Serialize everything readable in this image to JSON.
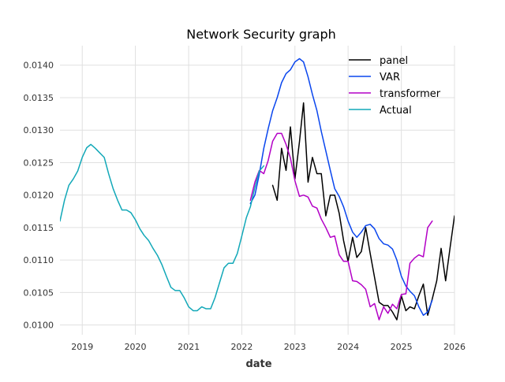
{
  "chart_data": {
    "type": "line",
    "title": "Network Security graph",
    "xlabel": "date",
    "ylabel": "",
    "x_axis_type": "date",
    "xlim": [
      "2018-08-01",
      "2026-01-01"
    ],
    "ylim": [
      0.00985,
      0.0143
    ],
    "x_ticks": [
      {
        "value": "2019-01-01",
        "label": "2019"
      },
      {
        "value": "2020-01-01",
        "label": "2020"
      },
      {
        "value": "2021-01-01",
        "label": "2021"
      },
      {
        "value": "2022-01-01",
        "label": "2022"
      },
      {
        "value": "2023-01-01",
        "label": "2023"
      },
      {
        "value": "2024-01-01",
        "label": "2024"
      },
      {
        "value": "2025-01-01",
        "label": "2025"
      },
      {
        "value": "2026-01-01",
        "label": "2026"
      }
    ],
    "y_ticks": [
      {
        "value": 0.01,
        "label": "0.0100"
      },
      {
        "value": 0.0105,
        "label": "0.0105"
      },
      {
        "value": 0.011,
        "label": "0.0110"
      },
      {
        "value": 0.0115,
        "label": "0.0115"
      },
      {
        "value": 0.012,
        "label": "0.0120"
      },
      {
        "value": 0.0125,
        "label": "0.0125"
      },
      {
        "value": 0.013,
        "label": "0.0130"
      },
      {
        "value": 0.0135,
        "label": "0.0135"
      },
      {
        "value": 0.014,
        "label": "0.0140"
      }
    ],
    "grid": true,
    "legend_position": "top-right",
    "series": [
      {
        "name": "panel",
        "color": "#000000",
        "points": [
          [
            "2022-08-01",
            0.01215
          ],
          [
            "2022-09-01",
            0.01192
          ],
          [
            "2022-10-01",
            0.01272
          ],
          [
            "2022-11-01",
            0.01238
          ],
          [
            "2022-12-01",
            0.01305
          ],
          [
            "2023-01-01",
            0.01225
          ],
          [
            "2023-02-01",
            0.01282
          ],
          [
            "2023-03-01",
            0.01342
          ],
          [
            "2023-04-01",
            0.0122
          ],
          [
            "2023-05-01",
            0.01258
          ],
          [
            "2023-06-01",
            0.01233
          ],
          [
            "2023-07-01",
            0.01233
          ],
          [
            "2023-08-01",
            0.01168
          ],
          [
            "2023-09-01",
            0.012
          ],
          [
            "2023-10-01",
            0.012
          ],
          [
            "2023-11-01",
            0.01172
          ],
          [
            "2023-12-01",
            0.0113
          ],
          [
            "2024-01-01",
            0.01098
          ],
          [
            "2024-02-01",
            0.01135
          ],
          [
            "2024-03-01",
            0.01104
          ],
          [
            "2024-04-01",
            0.01113
          ],
          [
            "2024-05-01",
            0.0115
          ],
          [
            "2024-06-01",
            0.0111
          ],
          [
            "2024-07-01",
            0.01073
          ],
          [
            "2024-08-01",
            0.01035
          ],
          [
            "2024-09-01",
            0.0103
          ],
          [
            "2024-10-01",
            0.0103
          ],
          [
            "2024-11-01",
            0.0102
          ],
          [
            "2024-12-01",
            0.01008
          ],
          [
            "2025-01-01",
            0.01045
          ],
          [
            "2025-02-01",
            0.01022
          ],
          [
            "2025-03-01",
            0.01028
          ],
          [
            "2025-04-01",
            0.01025
          ],
          [
            "2025-05-01",
            0.01045
          ],
          [
            "2025-06-01",
            0.01063
          ],
          [
            "2025-07-01",
            0.01015
          ],
          [
            "2025-08-01",
            0.0104
          ],
          [
            "2025-09-01",
            0.01068
          ],
          [
            "2025-10-01",
            0.01118
          ],
          [
            "2025-11-01",
            0.01068
          ],
          [
            "2025-12-01",
            0.01118
          ],
          [
            "2026-01-01",
            0.01168
          ]
        ]
      },
      {
        "name": "VAR",
        "color": "#0a46ee",
        "points": [
          [
            "2022-03-01",
            0.01187
          ],
          [
            "2022-04-01",
            0.012
          ],
          [
            "2022-05-01",
            0.01232
          ],
          [
            "2022-06-01",
            0.01272
          ],
          [
            "2022-07-01",
            0.01302
          ],
          [
            "2022-08-01",
            0.0133
          ],
          [
            "2022-09-01",
            0.0135
          ],
          [
            "2022-10-01",
            0.01373
          ],
          [
            "2022-11-01",
            0.01387
          ],
          [
            "2022-12-01",
            0.01393
          ],
          [
            "2023-01-01",
            0.01405
          ],
          [
            "2023-02-01",
            0.0141
          ],
          [
            "2023-03-01",
            0.01405
          ],
          [
            "2023-04-01",
            0.01382
          ],
          [
            "2023-05-01",
            0.01355
          ],
          [
            "2023-06-01",
            0.0133
          ],
          [
            "2023-07-01",
            0.01298
          ],
          [
            "2023-08-01",
            0.01268
          ],
          [
            "2023-09-01",
            0.01238
          ],
          [
            "2023-10-01",
            0.0121
          ],
          [
            "2023-11-01",
            0.01198
          ],
          [
            "2023-12-01",
            0.01182
          ],
          [
            "2024-01-01",
            0.0116
          ],
          [
            "2024-02-01",
            0.01143
          ],
          [
            "2024-03-01",
            0.01135
          ],
          [
            "2024-04-01",
            0.01143
          ],
          [
            "2024-05-01",
            0.01153
          ],
          [
            "2024-06-01",
            0.01155
          ],
          [
            "2024-07-01",
            0.01148
          ],
          [
            "2024-08-01",
            0.01133
          ],
          [
            "2024-09-01",
            0.01125
          ],
          [
            "2024-10-01",
            0.01123
          ],
          [
            "2024-11-01",
            0.01117
          ],
          [
            "2024-12-01",
            0.011
          ],
          [
            "2025-01-01",
            0.01075
          ],
          [
            "2025-02-01",
            0.0106
          ],
          [
            "2025-03-01",
            0.01052
          ],
          [
            "2025-04-01",
            0.01045
          ],
          [
            "2025-05-01",
            0.01028
          ],
          [
            "2025-06-01",
            0.01015
          ],
          [
            "2025-07-01",
            0.0102
          ],
          [
            "2025-08-01",
            0.01038
          ]
        ]
      },
      {
        "name": "transformer",
        "color": "#b300c6",
        "points": [
          [
            "2022-03-01",
            0.01192
          ],
          [
            "2022-04-01",
            0.0122
          ],
          [
            "2022-05-01",
            0.01238
          ],
          [
            "2022-06-01",
            0.01233
          ],
          [
            "2022-07-01",
            0.01253
          ],
          [
            "2022-08-01",
            0.01283
          ],
          [
            "2022-09-01",
            0.01295
          ],
          [
            "2022-10-01",
            0.01295
          ],
          [
            "2022-11-01",
            0.01278
          ],
          [
            "2022-12-01",
            0.01257
          ],
          [
            "2023-01-01",
            0.01222
          ],
          [
            "2023-02-01",
            0.01198
          ],
          [
            "2023-03-01",
            0.012
          ],
          [
            "2023-04-01",
            0.01197
          ],
          [
            "2023-05-01",
            0.01183
          ],
          [
            "2023-06-01",
            0.0118
          ],
          [
            "2023-07-01",
            0.01163
          ],
          [
            "2023-08-01",
            0.0115
          ],
          [
            "2023-09-01",
            0.01135
          ],
          [
            "2023-10-01",
            0.01137
          ],
          [
            "2023-11-01",
            0.01108
          ],
          [
            "2023-12-01",
            0.01098
          ],
          [
            "2024-01-01",
            0.01098
          ],
          [
            "2024-02-01",
            0.01068
          ],
          [
            "2024-03-01",
            0.01067
          ],
          [
            "2024-04-01",
            0.01062
          ],
          [
            "2024-05-01",
            0.01055
          ],
          [
            "2024-06-01",
            0.01028
          ],
          [
            "2024-07-01",
            0.01033
          ],
          [
            "2024-08-01",
            0.01008
          ],
          [
            "2024-09-01",
            0.01028
          ],
          [
            "2024-10-01",
            0.01018
          ],
          [
            "2024-11-01",
            0.01032
          ],
          [
            "2024-12-01",
            0.01025
          ],
          [
            "2025-01-01",
            0.01047
          ],
          [
            "2025-02-01",
            0.01048
          ],
          [
            "2025-03-01",
            0.01095
          ],
          [
            "2025-04-01",
            0.01103
          ],
          [
            "2025-05-01",
            0.01108
          ],
          [
            "2025-06-01",
            0.01105
          ],
          [
            "2025-07-01",
            0.0115
          ],
          [
            "2025-08-01",
            0.0116
          ]
        ]
      },
      {
        "name": "Actual",
        "color": "#12a8b8",
        "points": [
          [
            "2018-08-01",
            0.0116
          ],
          [
            "2018-09-01",
            0.01192
          ],
          [
            "2018-10-01",
            0.01215
          ],
          [
            "2018-11-01",
            0.01225
          ],
          [
            "2018-12-01",
            0.01237
          ],
          [
            "2019-01-01",
            0.01258
          ],
          [
            "2019-02-01",
            0.01273
          ],
          [
            "2019-03-01",
            0.01278
          ],
          [
            "2019-04-01",
            0.01272
          ],
          [
            "2019-05-01",
            0.01265
          ],
          [
            "2019-06-01",
            0.01258
          ],
          [
            "2019-07-01",
            0.01233
          ],
          [
            "2019-08-01",
            0.0121
          ],
          [
            "2019-09-01",
            0.01192
          ],
          [
            "2019-10-01",
            0.01177
          ],
          [
            "2019-11-01",
            0.01177
          ],
          [
            "2019-12-01",
            0.01173
          ],
          [
            "2020-01-01",
            0.01162
          ],
          [
            "2020-02-01",
            0.01148
          ],
          [
            "2020-03-01",
            0.01138
          ],
          [
            "2020-04-01",
            0.0113
          ],
          [
            "2020-05-01",
            0.01118
          ],
          [
            "2020-06-01",
            0.01107
          ],
          [
            "2020-07-01",
            0.01093
          ],
          [
            "2020-08-01",
            0.01075
          ],
          [
            "2020-09-01",
            0.01058
          ],
          [
            "2020-10-01",
            0.01053
          ],
          [
            "2020-11-01",
            0.01053
          ],
          [
            "2020-12-01",
            0.01042
          ],
          [
            "2021-01-01",
            0.01028
          ],
          [
            "2021-02-01",
            0.01022
          ],
          [
            "2021-03-01",
            0.01022
          ],
          [
            "2021-04-01",
            0.01028
          ],
          [
            "2021-05-01",
            0.01025
          ],
          [
            "2021-06-01",
            0.01025
          ],
          [
            "2021-07-01",
            0.01042
          ],
          [
            "2021-08-01",
            0.01065
          ],
          [
            "2021-09-01",
            0.01088
          ],
          [
            "2021-10-01",
            0.01095
          ],
          [
            "2021-11-01",
            0.01095
          ],
          [
            "2021-12-01",
            0.0111
          ],
          [
            "2022-01-01",
            0.01137
          ],
          [
            "2022-02-01",
            0.01165
          ],
          [
            "2022-03-01",
            0.01182
          ],
          [
            "2022-04-01",
            0.01212
          ],
          [
            "2022-05-01",
            0.01237
          ],
          [
            "2022-06-01",
            0.01245
          ]
        ]
      }
    ]
  }
}
